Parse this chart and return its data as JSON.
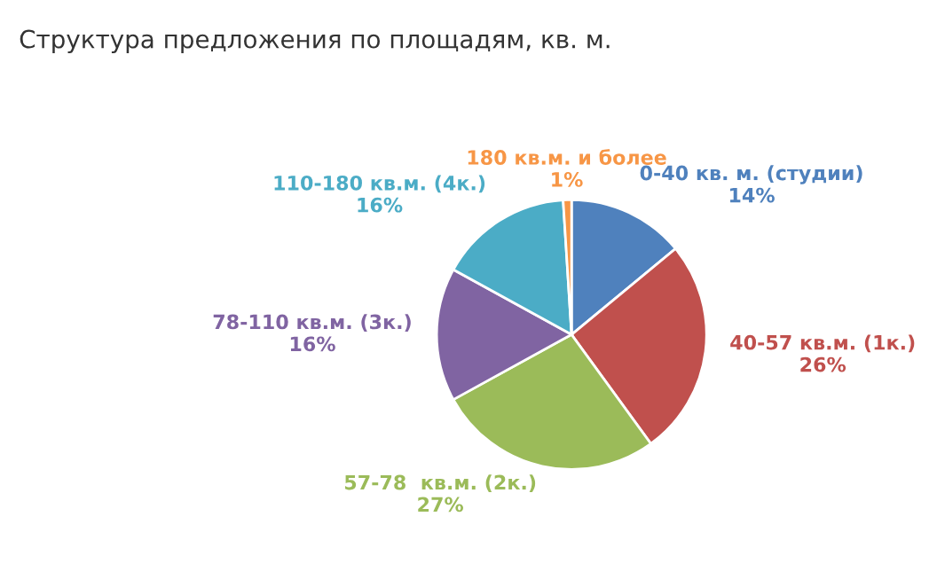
{
  "chart_data": {
    "type": "pie",
    "title": "Структура предложения по площадям, кв. м.",
    "categories": [
      "0-40 кв. м. (студии)",
      "40-57 кв.м. (1к.)",
      "57-78  кв.м. (2к.)",
      "78-110 кв.м. (3к.)",
      "110-180 кв.м. (4к.)",
      "180 кв.м. и более"
    ],
    "values": [
      14,
      26,
      27,
      16,
      16,
      1
    ],
    "value_labels": [
      "14%",
      "26%",
      "27%",
      "16%",
      "16%",
      "1%"
    ],
    "colors": [
      "#4f81bd",
      "#c0504d",
      "#9bbb59",
      "#8064a2",
      "#4bacc6",
      "#f79646"
    ],
    "legend": false
  }
}
